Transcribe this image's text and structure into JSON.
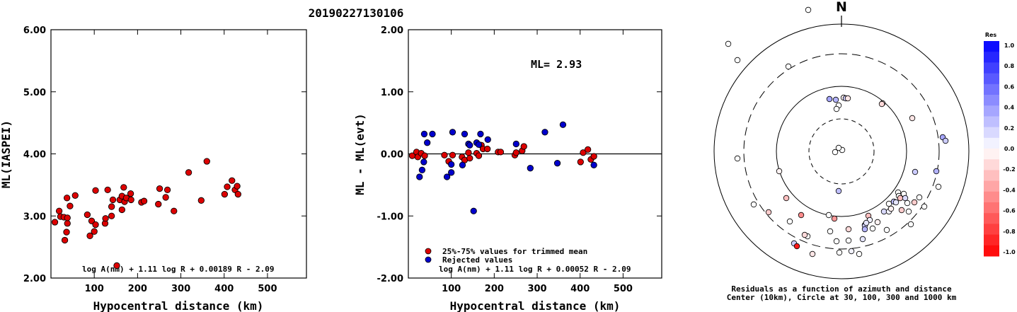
{
  "event_id": "20190227130106",
  "chart_data": [
    {
      "type": "scatter",
      "title": "",
      "xlabel": "Hypocentral distance (km)",
      "ylabel": "ML(IASPEI)",
      "xlim": [
        0,
        590
      ],
      "ylim": [
        2.0,
        6.0
      ],
      "xticks": [
        "100",
        "200",
        "300",
        "400",
        "500"
      ],
      "yticks": [
        "2.00",
        "3.00",
        "4.00",
        "5.00",
        "6.00"
      ],
      "formula": "log A(nm) + 1.11 log R + 0.00189 R - 2.09",
      "marker_color": "#dd0000",
      "points": [
        [
          9,
          2.9
        ],
        [
          19,
          3.08
        ],
        [
          22,
          2.99
        ],
        [
          30,
          2.98
        ],
        [
          32,
          2.61
        ],
        [
          36,
          2.74
        ],
        [
          37,
          3.29
        ],
        [
          38,
          2.88
        ],
        [
          38,
          2.97
        ],
        [
          44,
          3.16
        ],
        [
          56,
          3.33
        ],
        [
          84,
          3.02
        ],
        [
          90,
          2.68
        ],
        [
          94,
          2.92
        ],
        [
          100,
          2.75
        ],
        [
          103,
          2.86
        ],
        [
          103,
          3.41
        ],
        [
          125,
          2.88
        ],
        [
          126,
          2.96
        ],
        [
          131,
          3.42
        ],
        [
          140,
          3.0
        ],
        [
          140,
          3.15
        ],
        [
          143,
          3.26
        ],
        [
          152,
          2.2
        ],
        [
          159,
          3.26
        ],
        [
          164,
          3.1
        ],
        [
          164,
          3.32
        ],
        [
          168,
          3.46
        ],
        [
          170,
          3.23
        ],
        [
          174,
          3.29
        ],
        [
          184,
          3.36
        ],
        [
          185,
          3.26
        ],
        [
          209,
          3.22
        ],
        [
          215,
          3.24
        ],
        [
          248,
          3.19
        ],
        [
          251,
          3.44
        ],
        [
          265,
          3.3
        ],
        [
          269,
          3.42
        ],
        [
          284,
          3.08
        ],
        [
          318,
          3.7
        ],
        [
          347,
          3.25
        ],
        [
          360,
          3.88
        ],
        [
          401,
          3.35
        ],
        [
          407,
          3.47
        ],
        [
          418,
          3.57
        ],
        [
          425,
          3.42
        ],
        [
          430,
          3.48
        ],
        [
          432,
          3.35
        ]
      ]
    },
    {
      "type": "scatter",
      "title": "",
      "xlabel": "Hypocentral distance (km)",
      "ylabel": "ML - ML(evt)",
      "xlim": [
        0,
        590
      ],
      "ylim": [
        -2.0,
        2.0
      ],
      "xticks": [
        "100",
        "200",
        "300",
        "400",
        "500"
      ],
      "yticks": [
        "-2.00",
        "-1.00",
        "0.00",
        "1.00",
        "2.00"
      ],
      "ml_label": "ML= 2.93",
      "formula": "log A(nm) + 1.11 log R + 0.00052 R - 2.09",
      "legend": [
        {
          "label": "25%-75% values for trimmed mean",
          "color": "#dd0000"
        },
        {
          "label": "Rejected values",
          "color": "#0000cc"
        }
      ],
      "series": [
        {
          "name": "25%-75% values for trimmed mean",
          "color": "#dd0000",
          "points": [
            [
              9,
              -0.03
            ],
            [
              19,
              0.03
            ],
            [
              22,
              -0.05
            ],
            [
              30,
              0.01
            ],
            [
              38,
              -0.03
            ],
            [
              84,
              -0.02
            ],
            [
              94,
              -0.12
            ],
            [
              103,
              -0.02
            ],
            [
              125,
              -0.05
            ],
            [
              131,
              -0.1
            ],
            [
              140,
              0.02
            ],
            [
              143,
              -0.07
            ],
            [
              159,
              0.01
            ],
            [
              164,
              -0.03
            ],
            [
              170,
              0.14
            ],
            [
              174,
              0.08
            ],
            [
              184,
              0.08
            ],
            [
              209,
              0.03
            ],
            [
              215,
              0.03
            ],
            [
              248,
              -0.02
            ],
            [
              251,
              0.02
            ],
            [
              265,
              0.05
            ],
            [
              269,
              0.12
            ],
            [
              401,
              -0.13
            ],
            [
              407,
              0.02
            ],
            [
              418,
              0.07
            ],
            [
              425,
              -0.09
            ],
            [
              432,
              -0.04
            ]
          ]
        },
        {
          "name": "Rejected values",
          "color": "#0000cc",
          "points": [
            [
              26,
              -0.37
            ],
            [
              32,
              -0.26
            ],
            [
              36,
              -0.13
            ],
            [
              37,
              0.32
            ],
            [
              44,
              0.18
            ],
            [
              56,
              0.32
            ],
            [
              90,
              -0.37
            ],
            [
              100,
              -0.17
            ],
            [
              100,
              -0.3
            ],
            [
              103,
              0.35
            ],
            [
              126,
              -0.18
            ],
            [
              131,
              0.32
            ],
            [
              140,
              0.16
            ],
            [
              143,
              0.14
            ],
            [
              152,
              -0.92
            ],
            [
              159,
              0.18
            ],
            [
              164,
              0.15
            ],
            [
              168,
              0.32
            ],
            [
              185,
              0.23
            ],
            [
              251,
              0.16
            ],
            [
              284,
              -0.23
            ],
            [
              318,
              0.35
            ],
            [
              347,
              -0.15
            ],
            [
              360,
              0.47
            ],
            [
              432,
              -0.18
            ]
          ]
        }
      ]
    },
    {
      "type": "scatter",
      "subtype": "polar",
      "title": "N",
      "caption": "Residuals as a function of azimuth and distance",
      "caption2": "Center (10km), Circle at 30, 100, 300 and 1000 km",
      "colorbar_title": "Res",
      "colorbar_ticks": [
        "1.0",
        "0.8",
        "0.6",
        "0.4",
        "0.2",
        "0.0",
        "-0.2",
        "-0.4",
        "-0.6",
        "-0.8",
        "-1.0"
      ],
      "rings_km": [
        30,
        100,
        300,
        1000
      ],
      "points": [
        [
          1,
          2,
          0.0
        ],
        [
          -4,
          5,
          0.0
        ],
        [
          -17,
          74,
          0.35
        ],
        [
          -8,
          73,
          0.3
        ],
        [
          -4,
          65,
          0.0
        ],
        [
          3,
          76,
          -0.05
        ],
        [
          6,
          75,
          0.2
        ],
        [
          9,
          75,
          -0.1
        ],
        [
          -7,
          60,
          0.0
        ],
        [
          -75,
          120,
          0.0
        ],
        [
          58,
          68,
          -0.05
        ],
        [
          57,
          67,
          -0.15
        ],
        [
          100,
          47,
          -0.1
        ],
        [
          -147,
          129,
          0.0
        ],
        [
          -160,
          152,
          0.0
        ],
        [
          -47,
          200,
          0.0
        ],
        [
          -78,
          -66,
          -0.25
        ],
        [
          -88,
          -28,
          -0.05
        ],
        [
          -147,
          -10,
          0.0
        ],
        [
          -124,
          -75,
          0.0
        ],
        [
          -103,
          -86,
          -0.2
        ],
        [
          -73,
          -99,
          0.0
        ],
        [
          -57,
          -90,
          -0.45
        ],
        [
          -48,
          -120,
          0.0
        ],
        [
          -52,
          -118,
          -0.15
        ],
        [
          -67,
          -130,
          0.2
        ],
        [
          -63,
          -134,
          -0.9
        ],
        [
          -41,
          -145,
          -0.1
        ],
        [
          -16,
          -113,
          0.0
        ],
        [
          -10,
          -95,
          -0.4
        ],
        [
          -3,
          -143,
          0.0
        ],
        [
          -7,
          -127,
          0.0
        ],
        [
          10,
          -110,
          -0.15
        ],
        [
          10,
          -126,
          0.0
        ],
        [
          14,
          -141,
          0.05
        ],
        [
          25,
          -145,
          0.0
        ],
        [
          30,
          -124,
          0.1
        ],
        [
          33,
          -104,
          0.15
        ],
        [
          33,
          -105,
          0.2
        ],
        [
          33,
          -110,
          0.3
        ],
        [
          38,
          -91,
          -0.25
        ],
        [
          40,
          -97,
          0.05
        ],
        [
          44,
          -109,
          0.0
        ],
        [
          51,
          -100,
          -0.05
        ],
        [
          60,
          -85,
          0.15
        ],
        [
          64,
          -111,
          0.0
        ],
        [
          67,
          -85,
          0.05
        ],
        [
          67,
          -74,
          0.0
        ],
        [
          70,
          -81,
          -0.05
        ],
        [
          74,
          -71,
          0.25
        ],
        [
          77,
          -72,
          0.1
        ],
        [
          80,
          -58,
          0.0
        ],
        [
          81,
          -63,
          0.0
        ],
        [
          83,
          -66,
          -0.25
        ],
        [
          85,
          -83,
          -0.2
        ],
        [
          88,
          -60,
          0.0
        ],
        [
          90,
          -66,
          0.15
        ],
        [
          93,
          -73,
          0.0
        ],
        [
          95,
          -85,
          0.0
        ],
        [
          98,
          -103,
          0.0
        ],
        [
          103,
          -72,
          -0.2
        ],
        [
          110,
          -65,
          0.0
        ],
        [
          117,
          -78,
          0.0
        ],
        [
          134,
          -28,
          0.3
        ],
        [
          137,
          -50,
          0.0
        ],
        [
          143,
          20,
          0.35
        ],
        [
          147,
          15,
          0.2
        ],
        [
          104,
          -29,
          0.2
        ],
        [
          -4,
          -56,
          0.25
        ],
        [
          -18,
          -90,
          0.0
        ],
        [
          35,
          -101,
          0.1
        ],
        [
          -9,
          -1,
          0.0
        ]
      ]
    }
  ]
}
